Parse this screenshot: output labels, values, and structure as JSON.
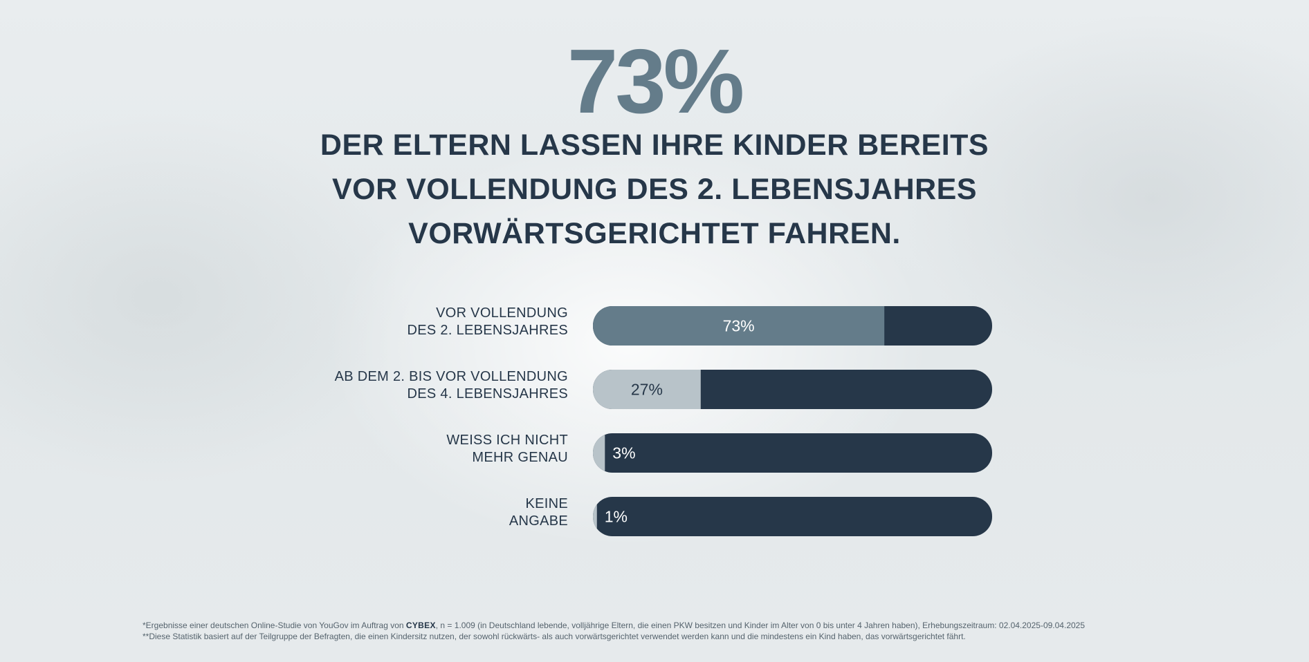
{
  "headline": {
    "big_value": "73%",
    "lines": [
      "DER ELTERN LASSEN IHRE KINDER BEREITS",
      "VOR VOLLENDUNG DES 2. LEBENSJAHRES",
      "VORWÄRTSGERICHTET FAHREN."
    ]
  },
  "chart_data": {
    "type": "bar",
    "orientation": "horizontal",
    "max": 100,
    "categories": [
      [
        "VOR VOLLENDUNG",
        "DES 2. LEBENSJAHRES"
      ],
      [
        "AB DEM 2. BIS VOR VOLLENDUNG",
        "DES 4. LEBENSJAHRES"
      ],
      [
        "WEISS ICH NICHT",
        "MEHR GENAU"
      ],
      [
        "KEINE",
        "ANGABE"
      ]
    ],
    "values": [
      73,
      27,
      3,
      1
    ],
    "value_labels": [
      "73%",
      "27%",
      "3%",
      "1%"
    ],
    "colors": {
      "track": "#263749",
      "highlight_fill": "#647c8a",
      "fill": "#b8c3c9",
      "label_on_fill": "#ffffff",
      "label_on_light": "#263749",
      "label_on_dark": "#ffffff"
    }
  },
  "footnotes": {
    "line1_prefix": "*Ergebnisse einer deutschen Online-Studie von YouGov im Auftrag von ",
    "line1_brand": "CYBEX",
    "line1_suffix": ", n = 1.009 (in Deutschland lebende, volljährige Eltern, die einen PKW besitzen und Kinder im Alter von 0 bis unter 4 Jahren haben), Erhebungszeitraum: 02.04.2025-09.04.2025",
    "line2": "**Diese Statistik basiert auf der Teilgruppe der Befragten, die einen Kindersitz nutzen, der sowohl rückwärts- als auch vorwärtsgerichtet verwendet werden kann und die mindestens ein Kind haben, das vorwärtsgerichtet fährt."
  }
}
